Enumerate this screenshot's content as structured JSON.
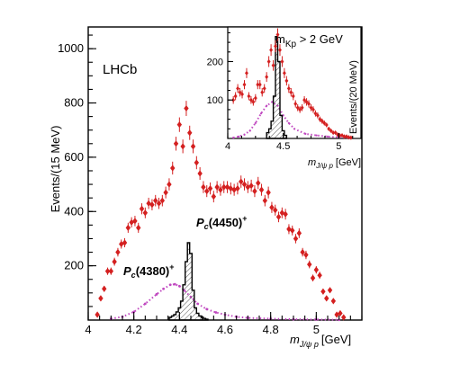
{
  "experiment": "LHCb",
  "colors": {
    "data": "#d42020",
    "pc4450": "#000000",
    "pc4380": "#c048c0"
  },
  "chart_data": [
    {
      "type": "scatter",
      "name": "main",
      "xlabel_main": "m",
      "xlabel_sub": "J/ψ p",
      "xlabel_unit": "[GeV]",
      "ylabel": "Events/(15 MeV)",
      "xlim": [
        4.0,
        5.2
      ],
      "ylim": [
        0,
        1080
      ],
      "xticks": [
        4,
        4.2,
        4.4,
        4.6,
        4.8,
        5
      ],
      "xtick_labels": [
        "4",
        "4.2",
        "4.4",
        "4.6",
        "4.8",
        "5"
      ],
      "yticks": [
        200,
        400,
        600,
        800,
        1000
      ],
      "ytick_labels": [
        "200",
        "400",
        "600",
        "800",
        "1000"
      ],
      "annotations": [
        {
          "text": "Pc(4450)+",
          "label": "P",
          "sub": "c",
          "rest": "(4450)",
          "sup": "+"
        },
        {
          "text": "Pc(4380)+",
          "label": "P",
          "sub": "c",
          "rest": "(4380)",
          "sup": "+"
        }
      ],
      "series": [
        {
          "kind": "data",
          "x": [
            4.04,
            4.055,
            4.07,
            4.085,
            4.1,
            4.115,
            4.13,
            4.145,
            4.16,
            4.175,
            4.19,
            4.205,
            4.22,
            4.235,
            4.25,
            4.265,
            4.28,
            4.295,
            4.31,
            4.325,
            4.34,
            4.355,
            4.37,
            4.385,
            4.4,
            4.415,
            4.43,
            4.445,
            4.46,
            4.475,
            4.49,
            4.505,
            4.52,
            4.535,
            4.55,
            4.565,
            4.58,
            4.595,
            4.61,
            4.625,
            4.64,
            4.655,
            4.67,
            4.685,
            4.7,
            4.715,
            4.73,
            4.745,
            4.76,
            4.775,
            4.79,
            4.805,
            4.82,
            4.835,
            4.85,
            4.865,
            4.88,
            4.895,
            4.91,
            4.925,
            4.94,
            4.955,
            4.97,
            4.985,
            5.0,
            5.015,
            5.03,
            5.045,
            5.06,
            5.075,
            5.09,
            5.105,
            5.12
          ],
          "y": [
            20,
            80,
            115,
            180,
            180,
            215,
            250,
            280,
            285,
            340,
            360,
            365,
            340,
            410,
            395,
            430,
            425,
            440,
            430,
            440,
            470,
            500,
            560,
            650,
            720,
            640,
            780,
            690,
            640,
            580,
            540,
            490,
            475,
            485,
            455,
            490,
            480,
            490,
            490,
            485,
            480,
            485,
            510,
            500,
            490,
            495,
            475,
            505,
            480,
            440,
            470,
            415,
            405,
            380,
            395,
            390,
            335,
            330,
            300,
            320,
            250,
            240,
            205,
            155,
            185,
            165,
            105,
            80,
            110,
            70,
            20,
            25,
            10
          ]
        },
        {
          "kind": "pc4450",
          "name": "Pc(4450)+",
          "x": [
            4.36,
            4.37,
            4.38,
            4.39,
            4.4,
            4.41,
            4.42,
            4.43,
            4.44,
            4.45,
            4.46,
            4.47,
            4.48,
            4.49,
            4.5,
            4.51,
            4.52
          ],
          "y": [
            10,
            15,
            20,
            30,
            45,
            70,
            130,
            215,
            285,
            245,
            110,
            45,
            25,
            15,
            10,
            6,
            3
          ]
        },
        {
          "kind": "pc4380",
          "name": "Pc(4380)+",
          "x": [
            4.1,
            4.15,
            4.2,
            4.25,
            4.3,
            4.33,
            4.36,
            4.38,
            4.4,
            4.42,
            4.45,
            4.48,
            4.52,
            4.56,
            4.6,
            4.65,
            4.7,
            4.8,
            4.9,
            5.0,
            5.1
          ],
          "y": [
            5,
            12,
            30,
            60,
            95,
            115,
            130,
            132,
            125,
            110,
            85,
            60,
            40,
            28,
            20,
            12,
            8,
            5,
            3,
            2,
            1
          ]
        }
      ]
    },
    {
      "type": "scatter",
      "name": "inset",
      "cut_label": "m",
      "cut_sub": "Kp",
      "cut_rest": " > 2 GeV",
      "xlabel_main": "m",
      "xlabel_sub": "J/ψ p",
      "xlabel_unit": "[GeV]",
      "ylabel": "Events/(20 MeV)",
      "xlim": [
        4.0,
        5.2
      ],
      "ylim": [
        0,
        290
      ],
      "xticks": [
        4,
        4.5,
        5
      ],
      "xtick_labels": [
        "4",
        "4.5",
        "5"
      ],
      "yticks": [
        100,
        200
      ],
      "ytick_labels": [
        "100",
        "200"
      ],
      "series": [
        {
          "kind": "data",
          "x": [
            4.05,
            4.07,
            4.09,
            4.11,
            4.13,
            4.15,
            4.17,
            4.19,
            4.21,
            4.23,
            4.25,
            4.27,
            4.29,
            4.31,
            4.33,
            4.35,
            4.37,
            4.39,
            4.41,
            4.43,
            4.45,
            4.47,
            4.49,
            4.51,
            4.53,
            4.55,
            4.57,
            4.59,
            4.61,
            4.63,
            4.65,
            4.67,
            4.69,
            4.71,
            4.73,
            4.75,
            4.77,
            4.79,
            4.81,
            4.83,
            4.85,
            4.87,
            4.89,
            4.91,
            4.93,
            4.95,
            4.97,
            4.99,
            5.01,
            5.03,
            5.05,
            5.07,
            5.09,
            5.11
          ],
          "y": [
            100,
            110,
            130,
            120,
            115,
            140,
            170,
            110,
            100,
            95,
            105,
            140,
            140,
            120,
            130,
            160,
            200,
            230,
            190,
            240,
            270,
            230,
            200,
            170,
            150,
            130,
            120,
            110,
            90,
            80,
            75,
            80,
            100,
            95,
            90,
            80,
            75,
            65,
            60,
            50,
            45,
            40,
            35,
            25,
            20,
            15,
            15,
            10,
            8,
            8,
            5,
            5,
            3,
            2
          ]
        },
        {
          "kind": "pc4450",
          "x": [
            4.36,
            4.38,
            4.4,
            4.42,
            4.44,
            4.46,
            4.48,
            4.5,
            4.52
          ],
          "y": [
            15,
            25,
            45,
            110,
            265,
            200,
            60,
            20,
            8
          ]
        },
        {
          "kind": "pc4380",
          "x": [
            4.05,
            4.1,
            4.15,
            4.2,
            4.25,
            4.3,
            4.35,
            4.4,
            4.45,
            4.5,
            4.55,
            4.6,
            4.7,
            4.8,
            4.9,
            5.0,
            5.1
          ],
          "y": [
            2,
            5,
            10,
            20,
            40,
            65,
            85,
            95,
            85,
            60,
            40,
            25,
            12,
            8,
            5,
            3,
            2
          ]
        }
      ]
    }
  ]
}
